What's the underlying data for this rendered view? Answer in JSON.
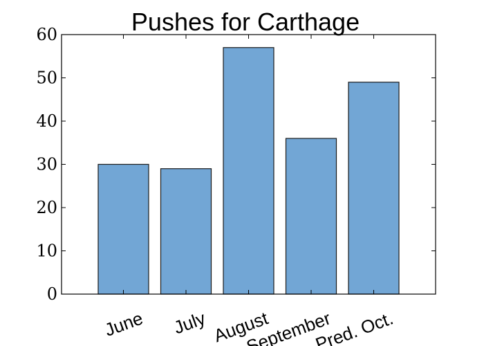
{
  "chart_data": {
    "type": "bar",
    "title": "Pushes for Carthage",
    "categories": [
      "June",
      "July",
      "August",
      "September",
      "Pred. Oct."
    ],
    "values": [
      30,
      29,
      57,
      36,
      49
    ],
    "xlabel": "",
    "ylabel": "",
    "ylim": [
      0,
      60
    ],
    "yticks": [
      0,
      10,
      20,
      30,
      40,
      50,
      60
    ],
    "grid": false,
    "legend": "none",
    "bar_color": "#72a6d5",
    "bar_edge_color": "#1a1a1a"
  }
}
